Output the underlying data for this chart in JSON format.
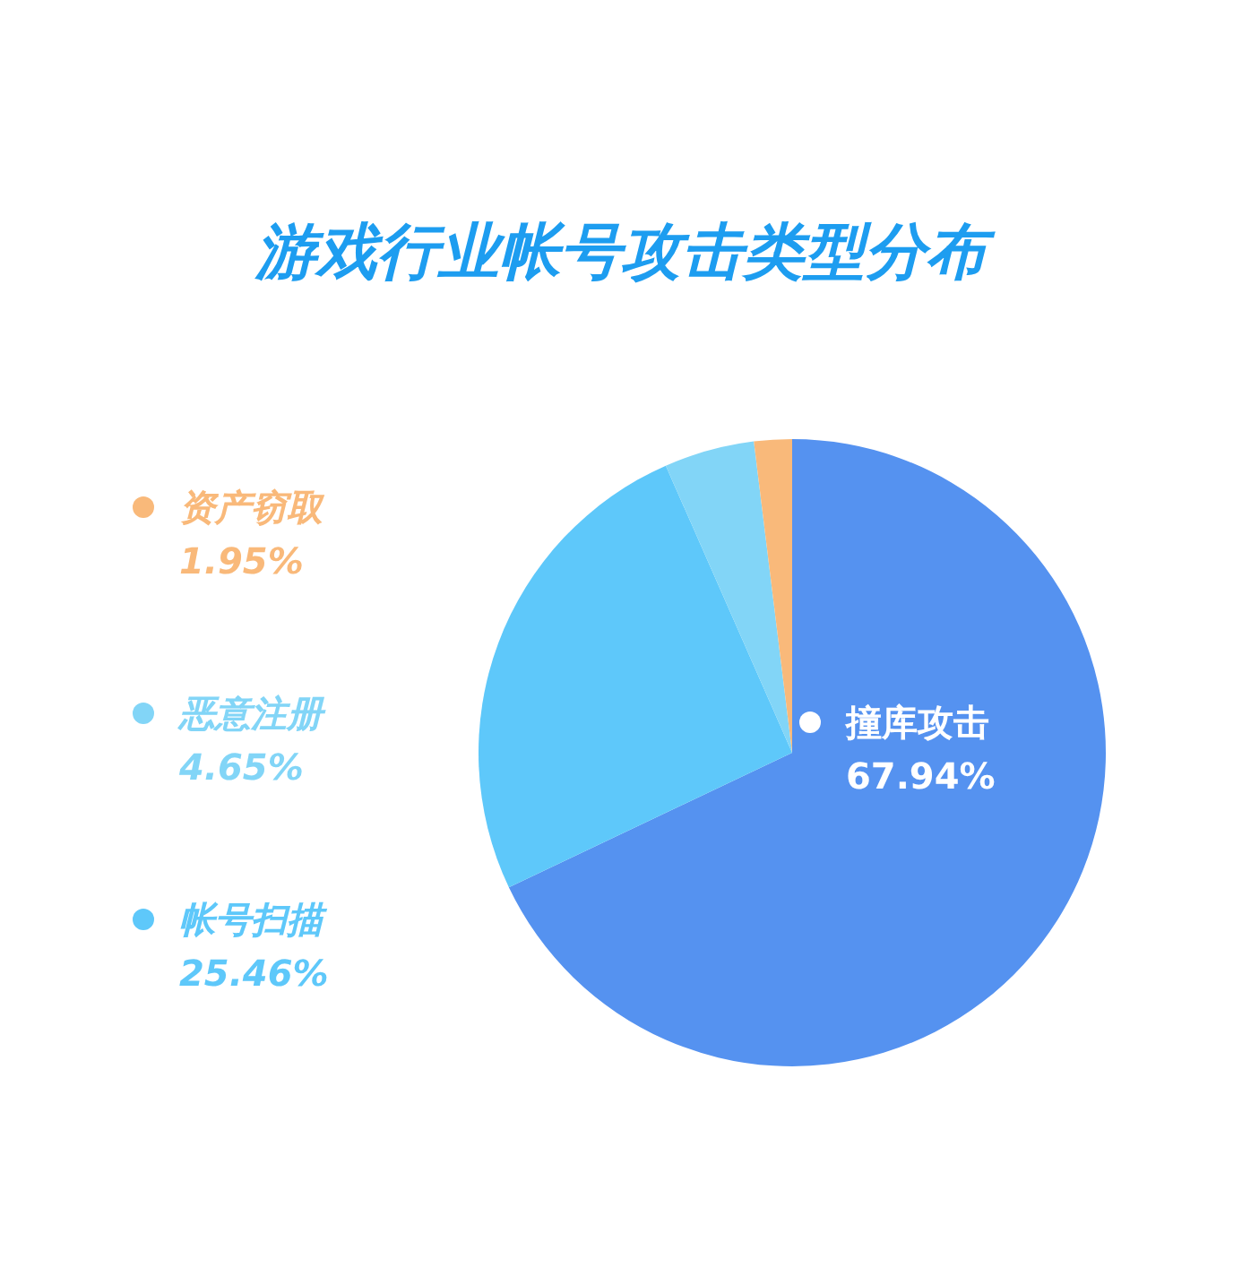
{
  "chart_data": {
    "type": "pie",
    "title": "游戏行业帐号攻击类型分布",
    "categories": [
      "撞库攻击",
      "帐号扫描",
      "恶意注册",
      "资产窃取"
    ],
    "values": [
      67.94,
      25.46,
      4.65,
      1.95
    ],
    "colors": [
      "#5592f0",
      "#5ec8fa",
      "#82d5f7",
      "#f9b97a"
    ],
    "value_labels": [
      "67.94%",
      "25.46%",
      "4.65%",
      "1.95%"
    ],
    "legend": "left"
  }
}
